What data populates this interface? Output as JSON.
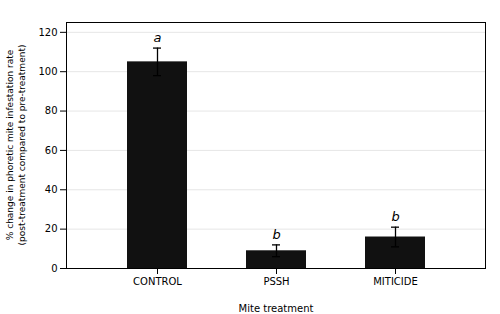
{
  "chart_data": {
    "type": "bar",
    "categories": [
      "CONTROL",
      "PSSH",
      "MITICIDE"
    ],
    "values": [
      105,
      9,
      16
    ],
    "errors": [
      7,
      3,
      5
    ],
    "annotations": [
      "a",
      "b",
      "b"
    ],
    "color": "#111111",
    "ylim": [
      0,
      125
    ],
    "yticks": [
      0,
      20,
      40,
      60,
      80,
      100,
      120
    ],
    "xlabel": "Mite treatment",
    "ylabel": "% change in phoretic mite infestation rate\n(post-treatment compared to pre-treatment)",
    "grid": true
  }
}
